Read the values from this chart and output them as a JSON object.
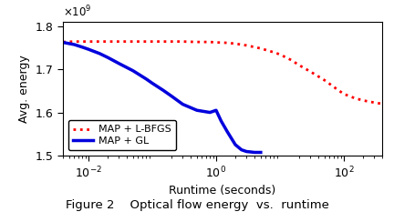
{
  "xlabel": "Runtime (seconds)",
  "ylabel": "Avg. energy",
  "ylim": [
    1500000000.0,
    1810000000.0
  ],
  "xlim": [
    0.004,
    400
  ],
  "yticks": [
    1500000000.0,
    1600000000.0,
    1700000000.0,
    1800000000.0
  ],
  "ytick_labels": [
    "1.5",
    "1.6",
    "1.7",
    "1.8"
  ],
  "caption": "Figure 2    Optical flow energy  vs.  runtime",
  "lbfgs_x": [
    0.004,
    0.006,
    0.008,
    0.01,
    0.015,
    0.02,
    0.03,
    0.05,
    0.08,
    0.1,
    0.2,
    0.3,
    0.5,
    0.8,
    1.0,
    1.5,
    2.0,
    3.0,
    5.0,
    8.0,
    10.0,
    15.0,
    20.0,
    30.0,
    50.0,
    80.0,
    100.0,
    150.0,
    200.0,
    300.0,
    400.0
  ],
  "lbfgs_y": [
    1764000000.0,
    1765000000.0,
    1765000000.0,
    1765000000.0,
    1765000000.0,
    1765000000.0,
    1765000000.0,
    1765000000.0,
    1765000000.0,
    1765000000.0,
    1765000000.0,
    1765000000.0,
    1764000000.0,
    1764000000.0,
    1763000000.0,
    1762000000.0,
    1760000000.0,
    1756000000.0,
    1749000000.0,
    1740000000.0,
    1735000000.0,
    1722000000.0,
    1710000000.0,
    1695000000.0,
    1675000000.0,
    1653000000.0,
    1643000000.0,
    1633000000.0,
    1628000000.0,
    1623000000.0,
    1620000000.0
  ],
  "gl_x": [
    0.004,
    0.006,
    0.008,
    0.01,
    0.015,
    0.02,
    0.03,
    0.05,
    0.08,
    0.1,
    0.15,
    0.2,
    0.3,
    0.5,
    0.8,
    1.0,
    1.2,
    1.5,
    2.0,
    2.5,
    3.0,
    3.5,
    4.0,
    4.5,
    5.0
  ],
  "gl_y": [
    1763000000.0,
    1758000000.0,
    1752000000.0,
    1747000000.0,
    1737000000.0,
    1728000000.0,
    1714000000.0,
    1697000000.0,
    1678000000.0,
    1668000000.0,
    1651000000.0,
    1638000000.0,
    1619000000.0,
    1605000000.0,
    1600000000.0,
    1605000000.0,
    1580000000.0,
    1555000000.0,
    1525000000.0,
    1513000000.0,
    1509000000.0,
    1508000000.0,
    1507000000.0,
    1507000000.0,
    1507000000.0
  ],
  "lbfgs_color": "#ff0000",
  "gl_color": "#0000dd",
  "legend_labels": [
    "MAP + L-BFGS",
    "MAP + GL"
  ],
  "background_color": "#ffffff"
}
